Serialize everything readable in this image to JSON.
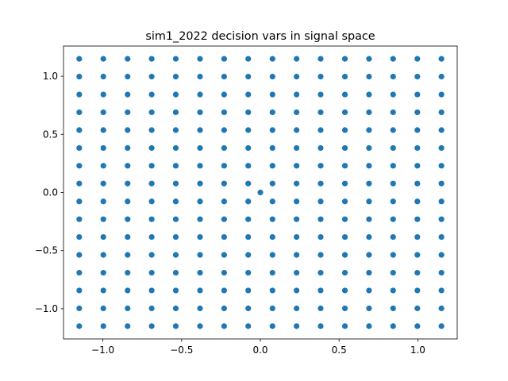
{
  "chart_data": {
    "type": "scatter",
    "title": "sim1_2022 decision vars in signal space",
    "xlabel": "",
    "ylabel": "",
    "xlim": [
      -1.25,
      1.25
    ],
    "ylim": [
      -1.26,
      1.26
    ],
    "grid": false,
    "marker_color": "#1f77b4",
    "x_ticks": [
      -1.0,
      -0.5,
      0.0,
      0.5,
      1.0
    ],
    "x_tick_labels": [
      "−1.0",
      "−0.5",
      "0.0",
      "0.5",
      "1.0"
    ],
    "y_ticks": [
      -1.0,
      -0.5,
      0.0,
      0.5,
      1.0
    ],
    "y_tick_labels": [
      "−1.0",
      "−0.5",
      "0.0",
      "0.5",
      "1.0"
    ],
    "grid_levels": [
      -1.15,
      -0.997,
      -0.843,
      -0.69,
      -0.537,
      -0.383,
      -0.23,
      -0.077,
      0.077,
      0.23,
      0.383,
      0.537,
      0.69,
      0.843,
      0.997,
      1.15
    ],
    "extra_points": [
      {
        "x": 0.0,
        "y": 0.0
      }
    ]
  }
}
